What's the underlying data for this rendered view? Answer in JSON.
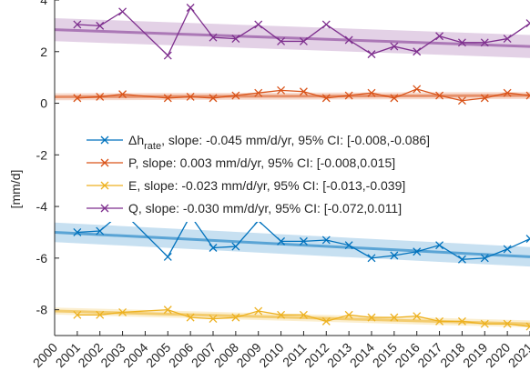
{
  "chart_data": {
    "type": "line",
    "title": "",
    "xlabel": "",
    "ylabel": "[mm/d]",
    "xlim": [
      2000,
      2021
    ],
    "ylim": [
      -9,
      4
    ],
    "yticks": [
      -8,
      -6,
      -4,
      -2,
      0,
      2,
      4
    ],
    "x": [
      2000,
      2001,
      2002,
      2003,
      2004,
      2005,
      2006,
      2007,
      2008,
      2009,
      2010,
      2011,
      2012,
      2013,
      2014,
      2015,
      2016,
      2017,
      2018,
      2019,
      2020,
      2021
    ],
    "x_tick_labels": [
      "2000",
      "2001",
      "2002",
      "2003",
      "2004",
      "2005",
      "2006",
      "2007",
      "2008",
      "2009",
      "2010",
      "2011",
      "2012",
      "2013",
      "2014",
      "2015",
      "2016",
      "2017",
      "2018",
      "2019",
      "2020",
      "2021"
    ],
    "legend_position": "center-right",
    "grid": false,
    "series": [
      {
        "legend_main": "Δh",
        "legend_sub": "rate",
        "legend_rest": ", slope: -0.045 mm/d/yr, 95% CI: [-0.008,-0.086]",
        "color": "#0072bd",
        "x": [
          2001,
          2002,
          2003,
          2005,
          2006,
          2007,
          2008,
          2009,
          2010,
          2011,
          2012,
          2013,
          2014,
          2015,
          2016,
          2017,
          2018,
          2019,
          2020,
          2021
        ],
        "values": [
          -5.0,
          -4.95,
          -4.2,
          -5.95,
          -4.35,
          -5.6,
          -5.55,
          -4.55,
          -5.35,
          -5.35,
          -5.3,
          -5.5,
          -6.0,
          -5.9,
          -5.75,
          -5.5,
          -6.05,
          -6.0,
          -5.65,
          -5.25
        ],
        "trend": [
          -5.0,
          -5.95
        ],
        "ci_halfwidth": 0.28
      },
      {
        "legend_main": "P",
        "legend_sub": "",
        "legend_rest": ", slope: 0.003 mm/d/yr, 95% CI: [-0.008,0.015]",
        "color": "#d95319",
        "x": [
          2001,
          2002,
          2003,
          2005,
          2006,
          2007,
          2008,
          2009,
          2010,
          2011,
          2012,
          2013,
          2014,
          2015,
          2016,
          2017,
          2018,
          2019,
          2020,
          2021
        ],
        "values": [
          0.2,
          0.25,
          0.35,
          0.2,
          0.25,
          0.2,
          0.3,
          0.4,
          0.5,
          0.45,
          0.2,
          0.3,
          0.4,
          0.2,
          0.55,
          0.3,
          0.1,
          0.2,
          0.4,
          0.3
        ],
        "trend": [
          0.25,
          0.3
        ],
        "ci_halfwidth": 0.1
      },
      {
        "legend_main": "E",
        "legend_sub": "",
        "legend_rest": ", slope: -0.023 mm/d/yr, 95% CI: [-0.013,-0.039]",
        "color": "#edb120",
        "x": [
          2001,
          2002,
          2003,
          2005,
          2006,
          2007,
          2008,
          2009,
          2010,
          2011,
          2012,
          2013,
          2014,
          2015,
          2016,
          2017,
          2018,
          2019,
          2020,
          2021
        ],
        "values": [
          -8.2,
          -8.2,
          -8.1,
          -8.0,
          -8.3,
          -8.35,
          -8.3,
          -8.05,
          -8.2,
          -8.2,
          -8.45,
          -8.2,
          -8.3,
          -8.3,
          -8.25,
          -8.45,
          -8.45,
          -8.55,
          -8.55,
          -8.65
        ],
        "trend": [
          -8.05,
          -8.55
        ],
        "ci_halfwidth": 0.1
      },
      {
        "legend_main": "Q",
        "legend_sub": "",
        "legend_rest": ", slope: -0.030 mm/d/yr, 95% CI: [-0.072,0.011]",
        "color": "#7e2f8e",
        "x": [
          2001,
          2002,
          2003,
          2005,
          2006,
          2007,
          2008,
          2009,
          2010,
          2011,
          2012,
          2013,
          2014,
          2015,
          2016,
          2017,
          2018,
          2019,
          2020,
          2021
        ],
        "values": [
          3.05,
          3.0,
          3.55,
          1.85,
          3.7,
          2.55,
          2.5,
          3.05,
          2.4,
          2.4,
          3.05,
          2.45,
          1.9,
          2.2,
          2.0,
          2.6,
          2.35,
          2.35,
          2.5,
          3.1
        ],
        "trend": [
          2.85,
          2.2
        ],
        "ci_halfwidth": 0.33
      }
    ]
  }
}
